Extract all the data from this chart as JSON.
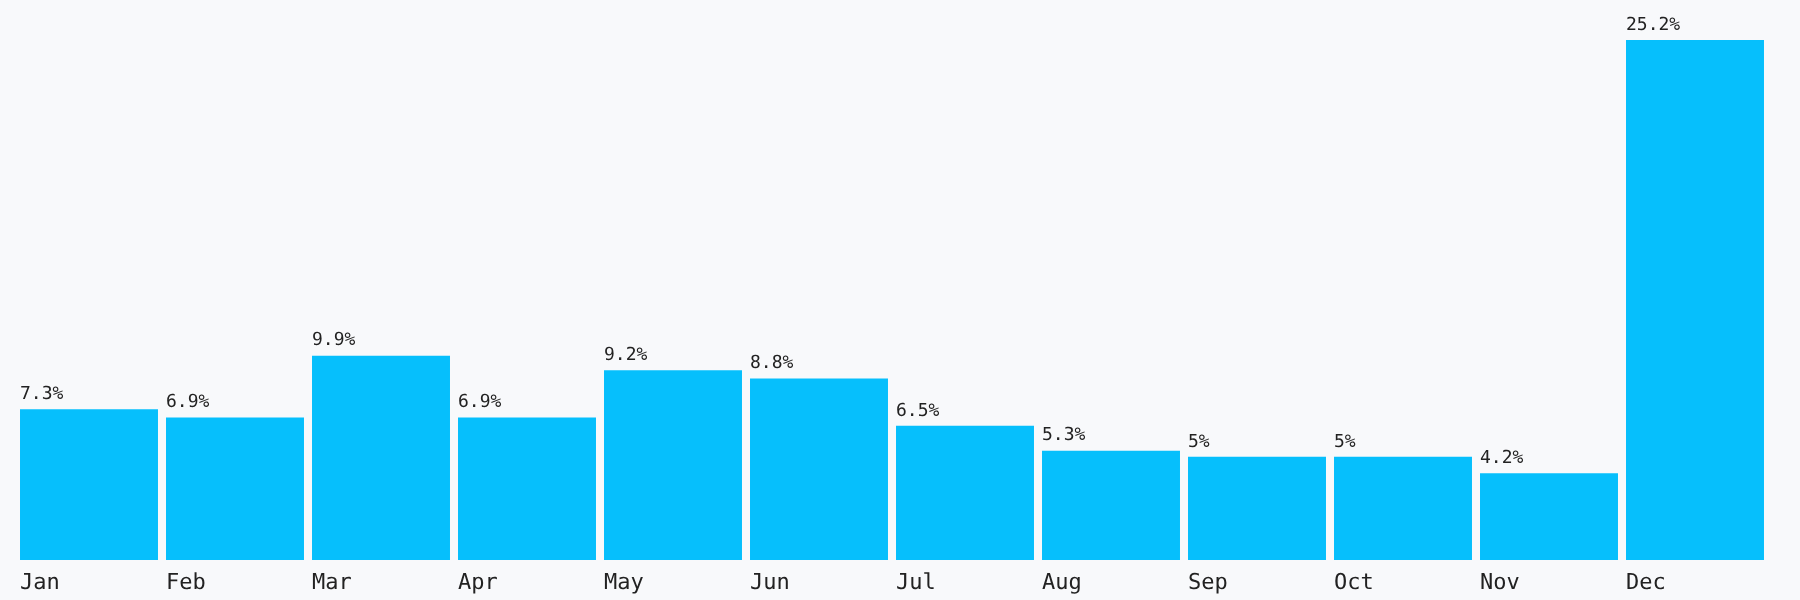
{
  "chart_data": {
    "type": "bar",
    "categories": [
      "Jan",
      "Feb",
      "Mar",
      "Apr",
      "May",
      "Jun",
      "Jul",
      "Aug",
      "Sep",
      "Oct",
      "Nov",
      "Dec"
    ],
    "values": [
      7.3,
      6.9,
      9.9,
      6.9,
      9.2,
      8.8,
      6.5,
      5.3,
      5,
      5,
      4.2,
      25.2
    ],
    "value_labels": [
      "7.3%",
      "6.9%",
      "9.9%",
      "6.9%",
      "9.2%",
      "8.8%",
      "6.5%",
      "5.3%",
      "5%",
      "5%",
      "4.2%",
      "25.2%"
    ],
    "color": "#06bffc",
    "grid": false,
    "legend": false
  }
}
